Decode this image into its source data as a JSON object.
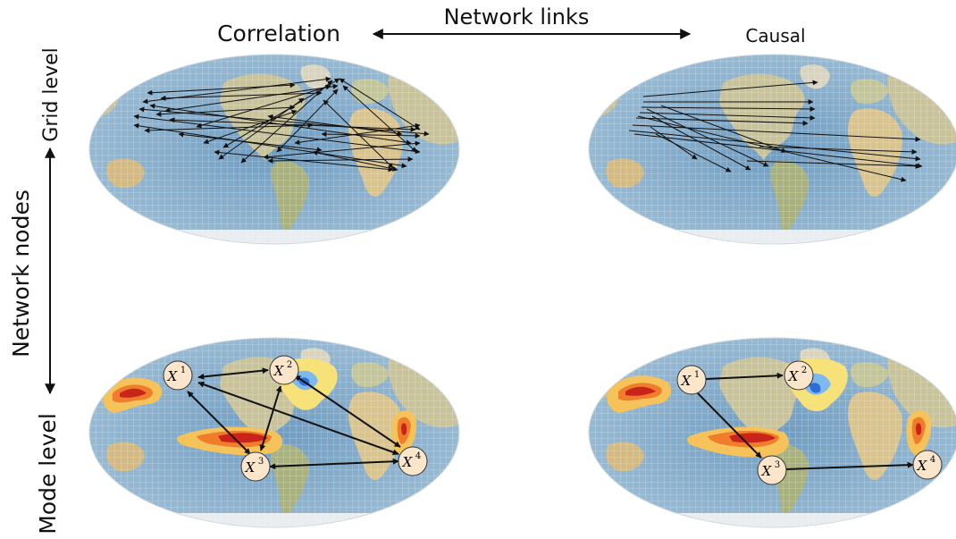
{
  "labels": {
    "correlation": "Correlation",
    "causal": "Causal",
    "network_links": "Network links",
    "network_nodes": "Network nodes",
    "grid_level": "Grid level",
    "mode_level": "Mode level"
  },
  "mode_nodes": {
    "x1": {
      "base": "X",
      "sup": "1"
    },
    "x2": {
      "base": "X",
      "sup": "2"
    },
    "x3": {
      "base": "X",
      "sup": "3"
    },
    "x4": {
      "base": "X",
      "sup": "4"
    }
  },
  "colors": {
    "ocean": "#7fa6c6",
    "land": "#c9c39c",
    "anomaly_warm": "#e8401c",
    "anomaly_cool": "#3a8fe0",
    "node_fill": "#fbe6cc",
    "arrow": "#111111"
  }
}
